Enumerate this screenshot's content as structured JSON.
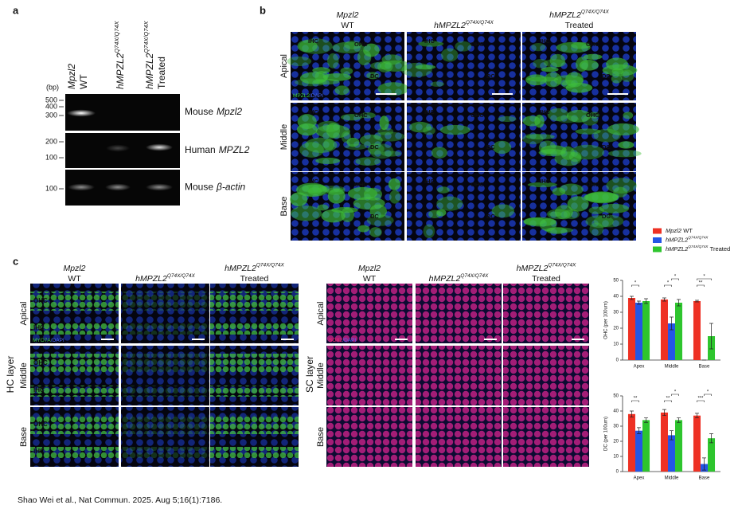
{
  "genotypes": [
    {
      "gene": "Mpzl2",
      "rest": "WT"
    },
    {
      "gene": "hMPZL2",
      "sup": "Q74X/Q74X"
    },
    {
      "gene": "hMPZL2",
      "sup": "Q74X/Q74X",
      "rest": "Treated"
    }
  ],
  "panel_a": {
    "label": "a",
    "bp_unit": "(bp)",
    "rows": [
      {
        "species": "Mouse",
        "gene": "Mpzl2",
        "ladder": [
          500,
          400,
          300
        ]
      },
      {
        "species": "Human",
        "gene": "MPZL2",
        "ladder": [
          200,
          100
        ]
      },
      {
        "species": "Mouse",
        "gene": "β-actin",
        "ladder": [
          100
        ]
      }
    ]
  },
  "panel_b": {
    "label": "b",
    "rows": [
      "Apical",
      "Middle",
      "Base"
    ],
    "stain_marker": "MPZL2",
    "stain_dapi": "/DAPI",
    "cell_labels": [
      "IHC",
      "OHC",
      "DC"
    ]
  },
  "panel_c": {
    "label": "c",
    "rows": [
      "Apical",
      "Middle",
      "Base"
    ],
    "hc": {
      "layer": "HC layer",
      "stain_marker": "MYO7A",
      "stain_dapi": "/DAPI",
      "cell_labels": [
        "OHC",
        "IHC"
      ]
    },
    "sc": {
      "layer": "SC layer",
      "stain_marker": "SOX2",
      "stain_dapi": "/DAPI"
    }
  },
  "chart_data": [
    {
      "type": "bar",
      "y_label": "OHC (per 100um)",
      "categories": [
        "Apex",
        "Middle",
        "Base"
      ],
      "ylim": [
        0,
        50
      ],
      "yticks": [
        0,
        10,
        20,
        30,
        40,
        50
      ],
      "series": [
        {
          "name": {
            "gene": "Mpzl2",
            "rest": "WT"
          },
          "color": "#ee3124",
          "values": [
            39,
            38,
            37
          ],
          "errors": [
            1,
            1,
            0.5
          ]
        },
        {
          "name": {
            "gene": "hMPZL2",
            "sup": "Q74X/Q74X"
          },
          "color": "#2456e6",
          "values": [
            36,
            23,
            0
          ],
          "errors": [
            1,
            4,
            0
          ]
        },
        {
          "name": {
            "gene": "hMPZL2",
            "sup": "Q74X/Q74X",
            "rest": "Treated"
          },
          "color": "#2ec52e",
          "values": [
            37,
            36,
            15
          ],
          "errors": [
            1.5,
            2,
            8
          ]
        }
      ],
      "significance": [
        {
          "category": 0,
          "from": 0,
          "to": 1,
          "label": "*"
        },
        {
          "category": 1,
          "from": 0,
          "to": 1,
          "label": "*"
        },
        {
          "category": 1,
          "from": 1,
          "to": 2,
          "label": "*"
        },
        {
          "category": 2,
          "from": 0,
          "to": 1,
          "label": "**"
        },
        {
          "category": 2,
          "from": 0,
          "to": 2,
          "label": "*"
        }
      ]
    },
    {
      "type": "bar",
      "y_label": "DC (per 100um)",
      "categories": [
        "Apex",
        "Middle",
        "Base"
      ],
      "ylim": [
        0,
        50
      ],
      "yticks": [
        0,
        10,
        20,
        30,
        40,
        50
      ],
      "series": [
        {
          "color": "#ee3124",
          "values": [
            38,
            39,
            37
          ],
          "errors": [
            2,
            2,
            1.5
          ]
        },
        {
          "color": "#2456e6",
          "values": [
            27,
            24,
            5
          ],
          "errors": [
            2,
            3,
            4
          ]
        },
        {
          "color": "#2ec52e",
          "values": [
            34,
            34,
            22
          ],
          "errors": [
            1.5,
            1.5,
            3
          ]
        }
      ],
      "significance": [
        {
          "category": 0,
          "from": 0,
          "to": 1,
          "label": "**"
        },
        {
          "category": 1,
          "from": 0,
          "to": 1,
          "label": "**"
        },
        {
          "category": 1,
          "from": 1,
          "to": 2,
          "label": "*"
        },
        {
          "category": 2,
          "from": 0,
          "to": 1,
          "label": "***"
        },
        {
          "category": 2,
          "from": 1,
          "to": 2,
          "label": "*"
        }
      ]
    }
  ],
  "citation": "Shao Wei et al., Nat Commun. 2025. Aug 5;16(1):7186."
}
